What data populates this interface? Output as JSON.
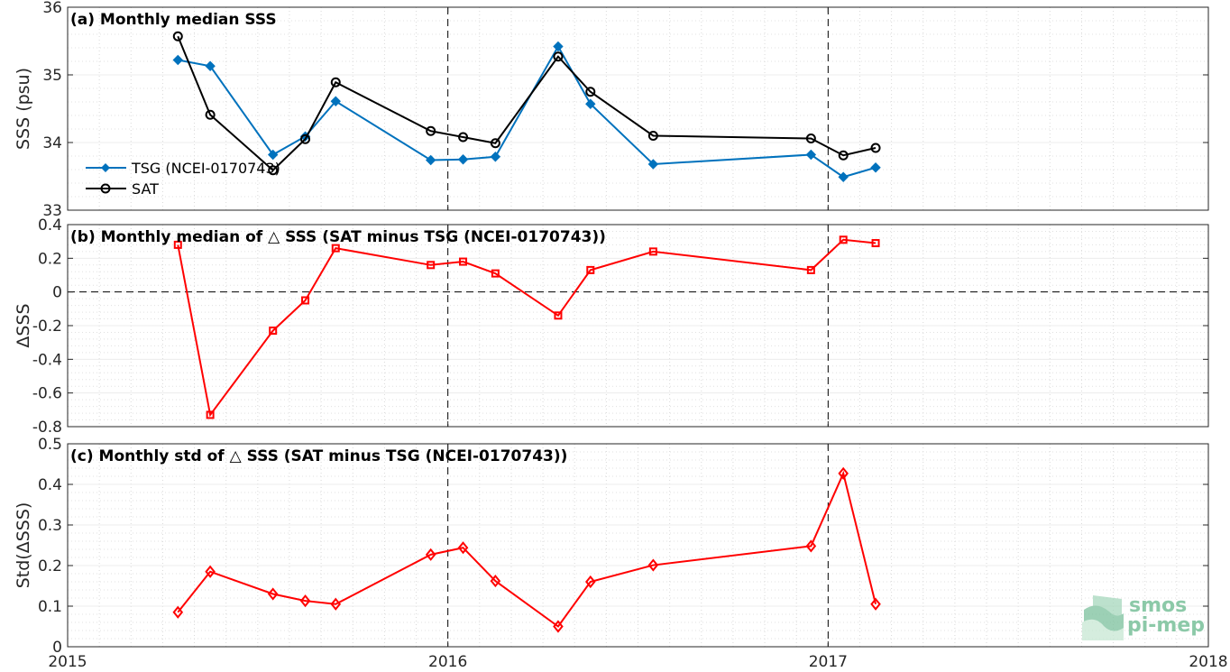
{
  "chart_data": [
    {
      "type": "line",
      "title": "(a) Monthly median SSS",
      "xlabel": "",
      "ylabel": "SSS (psu)",
      "xlim": [
        2015,
        2018
      ],
      "ylim": [
        33,
        36
      ],
      "yticks": [
        "33",
        "34",
        "35",
        "36"
      ],
      "grid": true,
      "legend_position": "bottom-left",
      "x": [
        2015.29,
        2015.375,
        2015.54,
        2015.625,
        2015.705,
        2015.955,
        2016.04,
        2016.125,
        2016.29,
        2016.375,
        2016.54,
        2016.955,
        2017.04,
        2017.125
      ],
      "series": [
        {
          "name": "TSG (NCEI-0170743)",
          "color": "#0072bd",
          "marker": "diamond-filled",
          "values": [
            35.22,
            35.13,
            33.82,
            34.09,
            34.61,
            33.74,
            33.75,
            33.79,
            35.42,
            34.57,
            33.68,
            33.82,
            33.49,
            33.63
          ]
        },
        {
          "name": "SAT",
          "color": "#000000",
          "marker": "circle-open",
          "values": [
            35.57,
            34.41,
            33.59,
            34.05,
            34.89,
            34.17,
            34.08,
            33.99,
            35.27,
            34.75,
            34.1,
            34.06,
            33.81,
            33.92
          ]
        }
      ]
    },
    {
      "type": "line",
      "title": "(b) Monthly median of △ SSS (SAT minus TSG (NCEI-0170743))",
      "xlabel": "",
      "ylabel": "ΔSSS",
      "xlim": [
        2015,
        2018
      ],
      "ylim": [
        -0.8,
        0.4
      ],
      "yticks": [
        "-0.8",
        "-0.6",
        "-0.4",
        "-0.2",
        "0",
        "0.2",
        "0.4"
      ],
      "grid": true,
      "x": [
        2015.29,
        2015.375,
        2015.54,
        2015.625,
        2015.705,
        2015.955,
        2016.04,
        2016.125,
        2016.29,
        2016.375,
        2016.54,
        2016.955,
        2017.04,
        2017.125
      ],
      "series": [
        {
          "color": "#ff0000",
          "marker": "square-open",
          "values": [
            0.28,
            -0.73,
            -0.23,
            -0.05,
            0.26,
            0.16,
            0.18,
            0.11,
            -0.14,
            0.13,
            0.24,
            0.13,
            0.31,
            0.29
          ]
        }
      ]
    },
    {
      "type": "line",
      "title": "(c) Monthly std of △ SSS (SAT minus TSG (NCEI-0170743))",
      "xlabel": "",
      "ylabel": "Std(ΔSSS)",
      "xlim": [
        2015,
        2018
      ],
      "ylim": [
        0,
        0.5
      ],
      "yticks": [
        "0",
        "0.1",
        "0.2",
        "0.3",
        "0.4",
        "0.5"
      ],
      "xticks": [
        "2015",
        "2016",
        "2017",
        "2018"
      ],
      "grid": true,
      "x": [
        2015.29,
        2015.375,
        2015.54,
        2015.625,
        2015.705,
        2015.955,
        2016.04,
        2016.125,
        2016.29,
        2016.375,
        2016.54,
        2016.955,
        2017.04,
        2017.125
      ],
      "series": [
        {
          "color": "#ff0000",
          "marker": "diamond-open",
          "values": [
            0.085,
            0.185,
            0.13,
            0.113,
            0.105,
            0.227,
            0.244,
            0.162,
            0.05,
            0.16,
            0.201,
            0.248,
            0.427,
            0.105
          ]
        }
      ]
    }
  ],
  "logo": {
    "line1": "smos",
    "line2": "pi-mep"
  }
}
